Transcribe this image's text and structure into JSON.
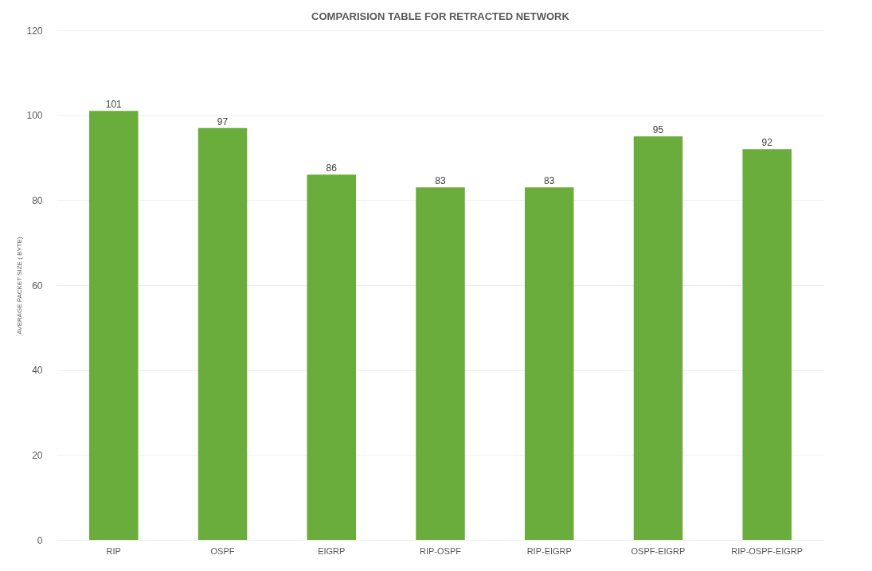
{
  "chart_data": {
    "type": "bar",
    "title": "COMPARISION TABLE FOR RETRACTED NETWORK",
    "ylabel": "AVERAGE PACKET SIZE ( BYTE)",
    "categories": [
      "RIP",
      "OSPF",
      "EIGRP",
      "RIP-OSPF",
      "RIP-EIGRP",
      "OSPF-EIGRP",
      "RIP-OSPF-EIGRP"
    ],
    "values": [
      101,
      97,
      86,
      83,
      83,
      95,
      92
    ],
    "color": "#6aad3d",
    "ylim": [
      0,
      120
    ],
    "yticks": [
      0,
      20,
      40,
      60,
      80,
      100,
      120
    ],
    "grid": "y",
    "data_labels": true
  }
}
